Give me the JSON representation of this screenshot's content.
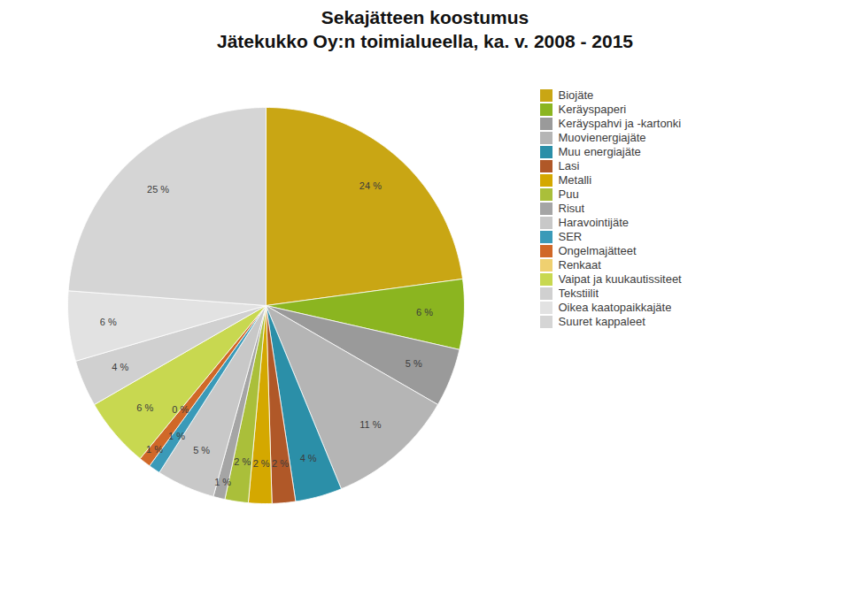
{
  "chart_data": {
    "type": "pie",
    "title": "Sekajätteen koostumus",
    "subtitle": "Jätekukko Oy:n toimialueella, ka. v. 2008 - 2015",
    "categories": [
      "Biojäte",
      "Keräyspaperi",
      "Keräyspahvi ja -kartonki",
      "Muovienergiajäte",
      "Muu energiajäte",
      "Lasi",
      "Metalli",
      "Puu",
      "Risut",
      "Haravointijäte",
      "SER",
      "Ongelmajätteet",
      "Renkaat",
      "Vaipat ja kuukautissiteet",
      "Tekstiilit",
      "Oikea kaatopaikkajäte",
      "Suuret kappaleet"
    ],
    "values": [
      24,
      6,
      5,
      11,
      4,
      2,
      2,
      2,
      1,
      5,
      1,
      1,
      0,
      6,
      4,
      6,
      25
    ],
    "value_labels": [
      "24 %",
      "6 %",
      "5 %",
      "11 %",
      "4 %",
      "2 %",
      "2 %",
      "2 %",
      "1 %",
      "5 %",
      "1 %",
      "1 %",
      "0 %",
      "6 %",
      "4 %",
      "6 %",
      "25 %"
    ],
    "colors": [
      "#C9A614",
      "#8BB520",
      "#9A9A9A",
      "#B5B5B5",
      "#2B8FA8",
      "#B05828",
      "#D4A800",
      "#AABF3A",
      "#A5A5A5",
      "#C8C8C8",
      "#3A9AB8",
      "#D06828",
      "#EFD070",
      "#C8D850",
      "#D0D0D0",
      "#E2E2E2",
      "#D5D5D5"
    ],
    "data_labels": true,
    "legend": "right"
  }
}
